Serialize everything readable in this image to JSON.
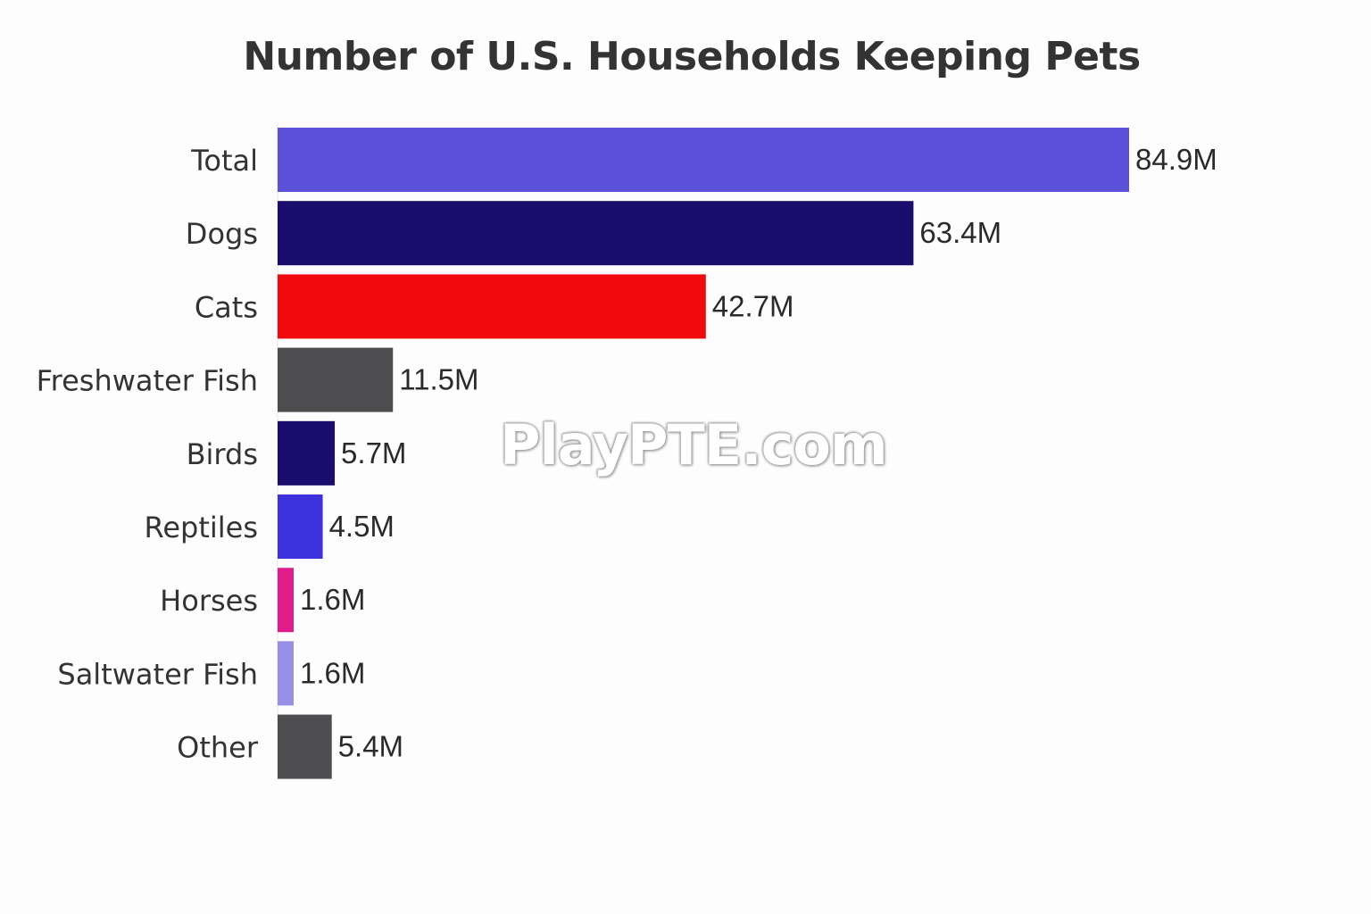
{
  "chart_data": {
    "type": "bar",
    "orientation": "horizontal",
    "title": "Number of U.S. Households Keeping Pets",
    "xlabel": "",
    "ylabel": "",
    "unit_suffix": "M",
    "xlim": [
      0,
      84.9
    ],
    "grid": false,
    "legend": "none",
    "categories": [
      "Total",
      "Dogs",
      "Cats",
      "Freshwater Fish",
      "Birds",
      "Reptiles",
      "Horses",
      "Saltwater Fish",
      "Other"
    ],
    "values": [
      84.9,
      63.4,
      42.7,
      11.5,
      5.7,
      4.5,
      1.6,
      1.6,
      5.4
    ],
    "value_labels": [
      "84.9M",
      "63.4M",
      "42.7M",
      "11.5M",
      "5.7M",
      "4.5M",
      "1.6M",
      "1.6M",
      "5.4M"
    ],
    "colors": [
      "#5b50d8",
      "#1a0d6e",
      "#f00a0e",
      "#4d4d50",
      "#1a0d6e",
      "#3c31dc",
      "#e21c8c",
      "#968fe6",
      "#4d4d50"
    ]
  },
  "watermark": "PlayPTE.com"
}
